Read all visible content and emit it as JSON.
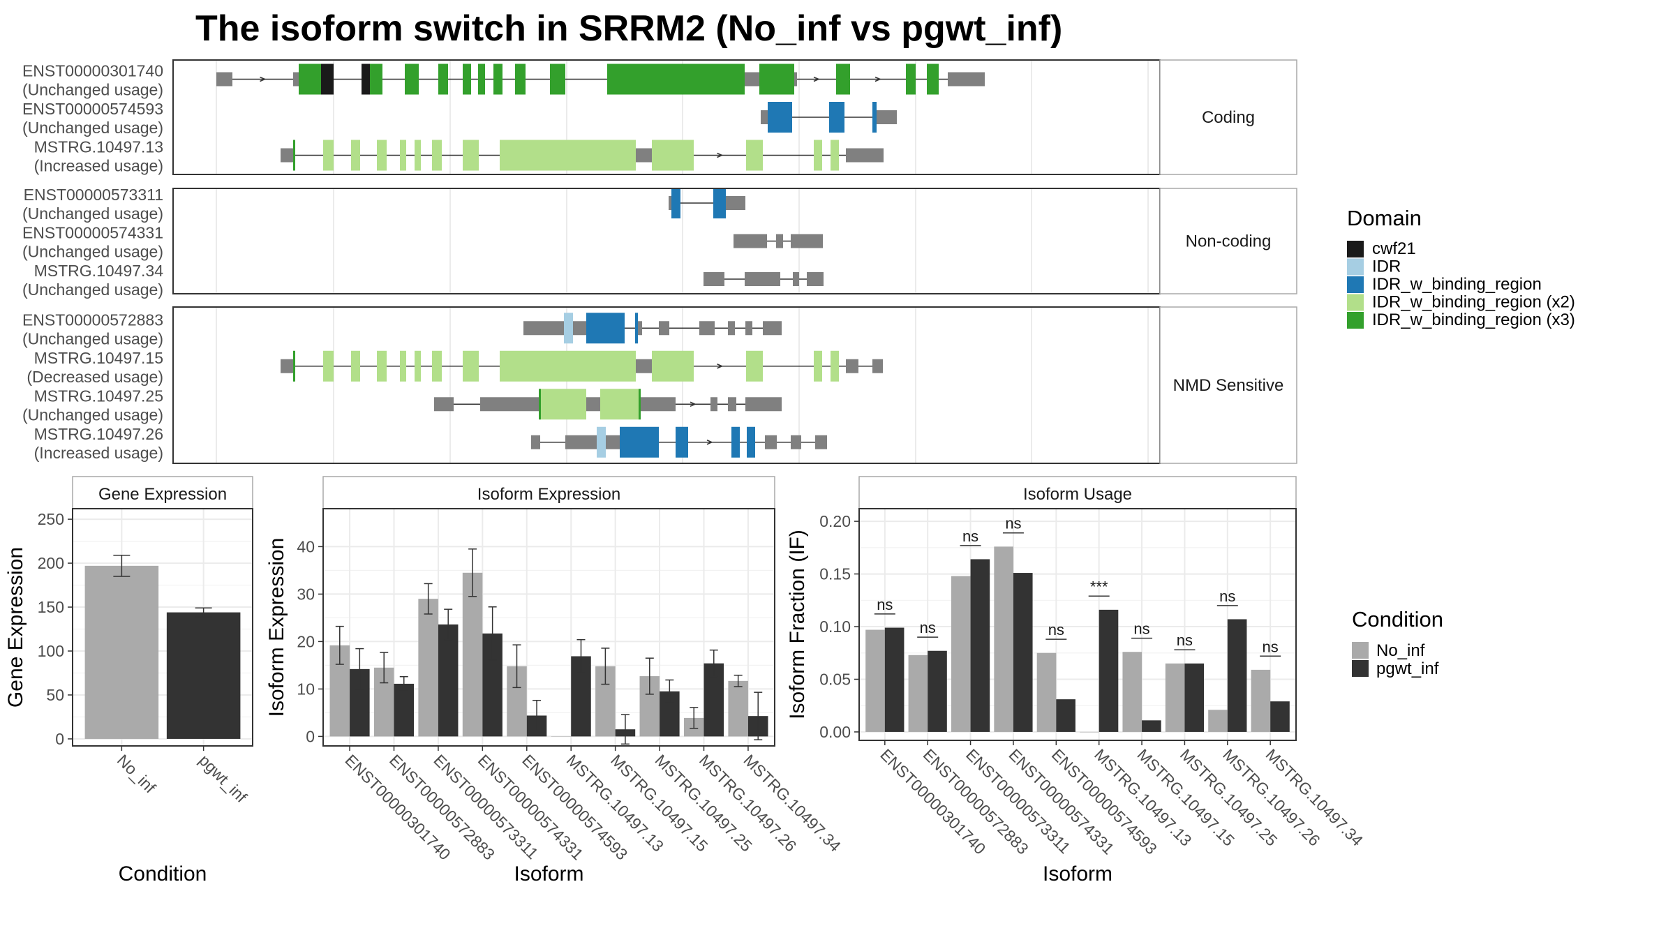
{
  "title": "The isoform switch in SRRM2 (No_inf vs pgwt_inf)",
  "colors": {
    "background": "#ffffff",
    "panel_border": "#333333",
    "strip_fill": "#ffffff",
    "grid": "#ebebeb",
    "non_domain": "#808080",
    "cwf21": "#1a1a1a",
    "IDR": "#a6cee3",
    "IDR_w_binding_region": "#1f78b4",
    "IDR_w_binding_region_x2": "#b2df8a",
    "IDR_w_binding_region_x3": "#33a02c",
    "No_inf": "#aaaaaa",
    "pgwt_inf": "#333333"
  },
  "legend_domain": {
    "title": "Domain",
    "items": [
      {
        "label": "cwf21",
        "color": "#1a1a1a"
      },
      {
        "label": "IDR",
        "color": "#a6cee3"
      },
      {
        "label": "IDR_w_binding_region",
        "color": "#1f78b4"
      },
      {
        "label": "IDR_w_binding_region (x2)",
        "color": "#b2df8a"
      },
      {
        "label": "IDR_w_binding_region (x3)",
        "color": "#33a02c"
      }
    ]
  },
  "legend_condition": {
    "title": "Condition",
    "items": [
      {
        "label": "No_inf",
        "color": "#aaaaaa"
      },
      {
        "label": "pgwt_inf",
        "color": "#333333"
      }
    ]
  },
  "transcript_panels": [
    {
      "strip": "Coding",
      "transcripts": [
        {
          "id": "ENST00000301740",
          "usage": "(Unchanged usage)",
          "segments": [
            [
              0,
              23,
              "n"
            ],
            [
              110,
              118,
              "n"
            ],
            [
              118,
              150,
              "x3"
            ],
            [
              150,
              168,
              "cwf21"
            ],
            [
              208,
              220,
              "cwf21"
            ],
            [
              220,
              238,
              "x3"
            ],
            [
              270,
              290,
              "x3"
            ],
            [
              318,
              332,
              "x3"
            ],
            [
              353,
              365,
              "x3"
            ],
            [
              375,
              385,
              "x3"
            ],
            [
              397,
              410,
              "x3"
            ],
            [
              428,
              443,
              "x3"
            ],
            [
              478,
              500,
              "x3"
            ],
            [
              560,
              757,
              "x3"
            ],
            [
              757,
              778,
              "n"
            ],
            [
              778,
              828,
              "x3"
            ],
            [
              828,
              832,
              "n"
            ],
            [
              888,
              908,
              "x3"
            ],
            [
              988,
              1002,
              "x3"
            ],
            [
              1018,
              1035,
              "x3"
            ],
            [
              1048,
              1052,
              "n"
            ],
            [
              1052,
              1101,
              "n"
            ]
          ],
          "introArrows": [
            [
              23,
              110
            ],
            [
              832,
              888
            ],
            [
              908,
              988
            ]
          ]
        },
        {
          "id": "ENST00000574593",
          "usage": "(Unchanged usage)",
          "segments": [
            [
              780,
              790,
              "n"
            ],
            [
              790,
              825,
              "bind"
            ],
            [
              878,
              900,
              "bind"
            ],
            [
              940,
              946,
              "bind"
            ],
            [
              946,
              975,
              "n"
            ]
          ],
          "introArrows": []
        },
        {
          "id": "MSTRG.10497.13",
          "usage": "(Increased usage)",
          "segments": [
            [
              92,
              110,
              "n"
            ],
            [
              110,
              113,
              "x3"
            ],
            [
              153,
              168,
              "x2"
            ],
            [
              193,
              206,
              "x2"
            ],
            [
              230,
              244,
              "x2"
            ],
            [
              263,
              272,
              "x2"
            ],
            [
              284,
              293,
              "x2"
            ],
            [
              309,
              323,
              "x2"
            ],
            [
              353,
              376,
              "x2"
            ],
            [
              406,
              601,
              "x2"
            ],
            [
              601,
              624,
              "n"
            ],
            [
              624,
              684,
              "x2"
            ],
            [
              759,
              783,
              "x2"
            ],
            [
              856,
              868,
              "x2"
            ],
            [
              880,
              892,
              "x2"
            ],
            [
              902,
              904,
              "n"
            ],
            [
              904,
              956,
              "n"
            ]
          ],
          "introArrows": [
            [
              684,
              759
            ]
          ]
        }
      ]
    },
    {
      "strip": "Non-coding",
      "transcripts": [
        {
          "id": "ENST00000573311",
          "usage": "(Unchanged usage)",
          "segments": [
            [
              648,
              652,
              "n"
            ],
            [
              652,
              665,
              "bind"
            ],
            [
              712,
              730,
              "bind"
            ],
            [
              730,
              758,
              "n"
            ]
          ],
          "introArrows": []
        },
        {
          "id": "ENST00000574331",
          "usage": "(Unchanged usage)",
          "segments": [
            [
              741,
              789,
              "n"
            ],
            [
              802,
              812,
              "n"
            ],
            [
              823,
              869,
              "n"
            ]
          ],
          "introArrows": []
        },
        {
          "id": "MSTRG.10497.34",
          "usage": "(Unchanged usage)",
          "segments": [
            [
              698,
              728,
              "n"
            ],
            [
              757,
              808,
              "n"
            ],
            [
              826,
              835,
              "n"
            ],
            [
              846,
              870,
              "n"
            ]
          ],
          "introArrows": []
        }
      ]
    },
    {
      "strip": "NMD Sensitive",
      "transcripts": [
        {
          "id": "ENST00000572883",
          "usage": "(Unchanged usage)",
          "segments": [
            [
              440,
              498,
              "n"
            ],
            [
              498,
              511,
              "idr"
            ],
            [
              511,
              530,
              "n"
            ],
            [
              530,
              585,
              "bind"
            ],
            [
              600,
              604,
              "bind"
            ],
            [
              604,
              610,
              "n"
            ],
            [
              634,
              649,
              "n"
            ],
            [
              692,
              714,
              "n"
            ],
            [
              733,
              743,
              "n"
            ],
            [
              758,
              768,
              "n"
            ],
            [
              783,
              810,
              "n"
            ]
          ],
          "introArrows": []
        },
        {
          "id": "MSTRG.10497.15",
          "usage": "(Decreased usage)",
          "segments": [
            [
              92,
              110,
              "n"
            ],
            [
              110,
              113,
              "x3"
            ],
            [
              153,
              168,
              "x2"
            ],
            [
              193,
              206,
              "x2"
            ],
            [
              230,
              244,
              "x2"
            ],
            [
              263,
              272,
              "x2"
            ],
            [
              284,
              293,
              "x2"
            ],
            [
              309,
              323,
              "x2"
            ],
            [
              353,
              376,
              "x2"
            ],
            [
              406,
              601,
              "x2"
            ],
            [
              601,
              624,
              "n"
            ],
            [
              624,
              684,
              "x2"
            ],
            [
              759,
              783,
              "x2"
            ],
            [
              856,
              868,
              "x2"
            ],
            [
              880,
              892,
              "x2"
            ],
            [
              902,
              920,
              "n"
            ],
            [
              940,
              955,
              "n"
            ]
          ],
          "introArrows": [
            [
              684,
              759
            ]
          ]
        },
        {
          "id": "MSTRG.10497.25",
          "usage": "(Unchanged usage)",
          "segments": [
            [
              312,
              340,
              "n"
            ],
            [
              378,
              462,
              "n"
            ],
            [
              462,
              465,
              "x3"
            ],
            [
              465,
              530,
              "x2"
            ],
            [
              530,
              550,
              "n"
            ],
            [
              550,
              605,
              "x2"
            ],
            [
              605,
              608,
              "x3"
            ],
            [
              608,
              658,
              "n"
            ],
            [
              708,
              718,
              "n"
            ],
            [
              733,
              745,
              "n"
            ],
            [
              758,
              810,
              "n"
            ]
          ],
          "introArrows": [
            [
              658,
              708
            ]
          ]
        },
        {
          "id": "MSTRG.10497.26",
          "usage": "(Increased usage)",
          "segments": [
            [
              451,
              464,
              "n"
            ],
            [
              500,
              545,
              "n"
            ],
            [
              545,
              558,
              "idr"
            ],
            [
              558,
              578,
              "n"
            ],
            [
              578,
              634,
              "bind"
            ],
            [
              658,
              676,
              "bind"
            ],
            [
              738,
              750,
              "bind"
            ],
            [
              760,
              772,
              "bind"
            ],
            [
              786,
              803,
              "n"
            ],
            [
              823,
              838,
              "n"
            ],
            [
              858,
              875,
              "n"
            ]
          ],
          "introArrows": [
            [
              676,
              738
            ]
          ]
        }
      ]
    }
  ],
  "chart_data": [
    {
      "type": "bar",
      "title": "Gene Expression",
      "xlabel": "Condition",
      "ylabel": "Gene Expression",
      "ylim": [
        -8,
        262
      ],
      "yticks": [
        0,
        50,
        100,
        150,
        200,
        250
      ],
      "categories": [
        "No_inf",
        "pgwt_inf"
      ],
      "series": [
        {
          "name": "No_inf",
          "values": [
            197,
            null
          ],
          "err": [
            12,
            null
          ]
        },
        {
          "name": "pgwt_inf",
          "values": [
            null,
            144
          ],
          "err": [
            null,
            5
          ]
        }
      ]
    },
    {
      "type": "bar",
      "title": "Isoform Expression",
      "xlabel": "Isoform",
      "ylabel": "Isoform Expression",
      "ylim": [
        -2,
        48
      ],
      "yticks": [
        0,
        10,
        20,
        30,
        40
      ],
      "categories": [
        "ENST00000301740",
        "ENST00000572883",
        "ENST00000573311",
        "ENST00000574331",
        "ENST00000574593",
        "MSTRG.10497.13",
        "MSTRG.10497.15",
        "MSTRG.10497.25",
        "MSTRG.10497.26",
        "MSTRG.10497.34"
      ],
      "series": [
        {
          "name": "No_inf",
          "values": [
            19.2,
            14.5,
            29.0,
            34.5,
            14.8,
            0.0,
            14.8,
            12.7,
            3.9,
            11.7
          ],
          "err": [
            4.0,
            3.2,
            3.2,
            5.0,
            4.5,
            0.0,
            3.8,
            3.8,
            2.2,
            1.2
          ]
        },
        {
          "name": "pgwt_inf",
          "values": [
            14.2,
            11.1,
            23.6,
            21.7,
            4.4,
            16.9,
            1.5,
            9.5,
            15.4,
            4.3
          ],
          "err": [
            4.3,
            1.5,
            3.2,
            5.6,
            3.2,
            3.5,
            3.1,
            2.4,
            2.8,
            5.0
          ]
        }
      ]
    },
    {
      "type": "bar",
      "title": "Isoform Usage",
      "xlabel": "Isoform",
      "ylabel": "Isoform Fraction (IF)",
      "ylim": [
        -0.008,
        0.212
      ],
      "yticks": [
        "0.00",
        "0.05",
        "0.10",
        "0.15",
        "0.20"
      ],
      "categories": [
        "ENST00000301740",
        "ENST00000572883",
        "ENST00000573311",
        "ENST00000574331",
        "ENST00000574593",
        "MSTRG.10497.13",
        "MSTRG.10497.15",
        "MSTRG.10497.25",
        "MSTRG.10497.26",
        "MSTRG.10497.34"
      ],
      "series": [
        {
          "name": "No_inf",
          "values": [
            0.097,
            0.073,
            0.148,
            0.176,
            0.075,
            0.0,
            0.076,
            0.065,
            0.021,
            0.059
          ]
        },
        {
          "name": "pgwt_inf",
          "values": [
            0.099,
            0.077,
            0.164,
            0.151,
            0.031,
            0.116,
            0.011,
            0.065,
            0.107,
            0.029
          ]
        }
      ],
      "significance": [
        "ns",
        "ns",
        "ns",
        "ns",
        "ns",
        "***",
        "ns",
        "ns",
        "ns",
        "ns"
      ]
    }
  ]
}
